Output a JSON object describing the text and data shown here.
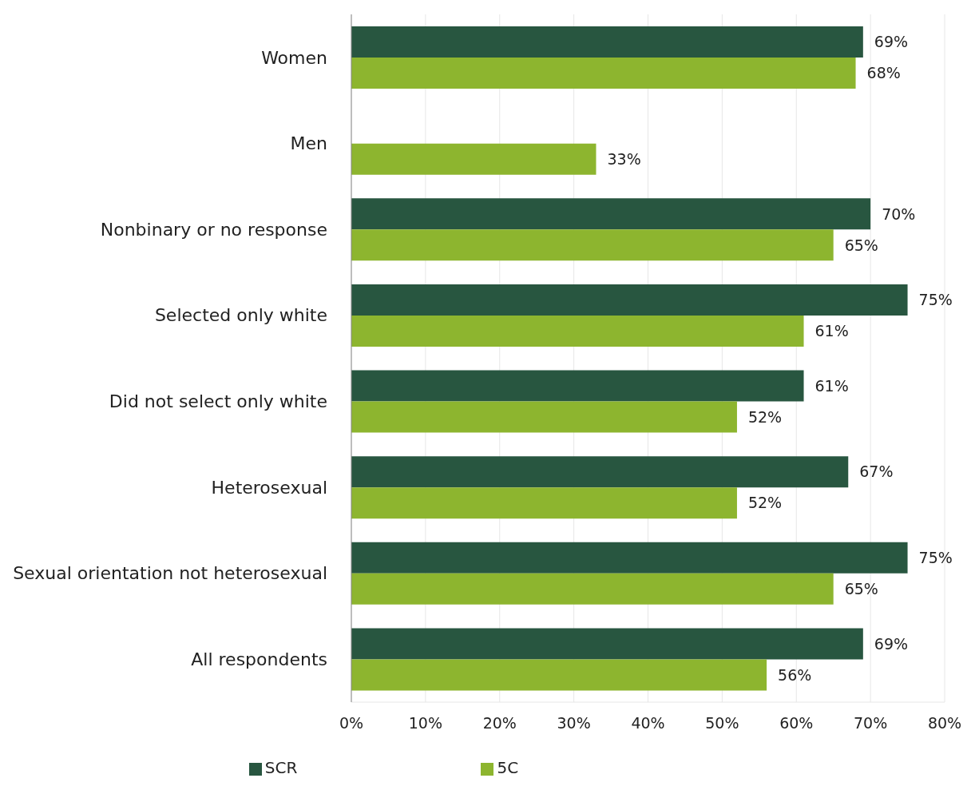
{
  "chart_data": {
    "type": "bar",
    "orientation": "horizontal",
    "categories": [
      "Women",
      "Men",
      "Nonbinary or no response",
      "Selected only white",
      "Did not select only white",
      "Heterosexual",
      "Sexual orientation not heterosexual",
      "All respondents"
    ],
    "series": [
      {
        "name": "SCR",
        "color": "#285640",
        "values": [
          69,
          null,
          70,
          75,
          61,
          67,
          75,
          69
        ],
        "value_labels": [
          "69%",
          null,
          "70%",
          "75%",
          "61%",
          "67%",
          "75%",
          "69%"
        ]
      },
      {
        "name": "5C",
        "color": "#8db52f",
        "values": [
          68,
          33,
          65,
          61,
          52,
          52,
          65,
          56
        ],
        "value_labels": [
          "68%",
          "33%",
          "65%",
          "61%",
          "52%",
          "52%",
          "65%",
          "56%"
        ]
      }
    ],
    "xlim": [
      0,
      80
    ],
    "xticks": [
      {
        "value": 0,
        "label": "0%"
      },
      {
        "value": 10,
        "label": "10%"
      },
      {
        "value": 20,
        "label": "20%"
      },
      {
        "value": 30,
        "label": "30%"
      },
      {
        "value": 40,
        "label": "40%"
      },
      {
        "value": 50,
        "label": "50%"
      },
      {
        "value": 60,
        "label": "60%"
      },
      {
        "value": 70,
        "label": "70%"
      },
      {
        "value": 80,
        "label": "80%"
      }
    ],
    "grid": "x",
    "legend": "bottom"
  }
}
